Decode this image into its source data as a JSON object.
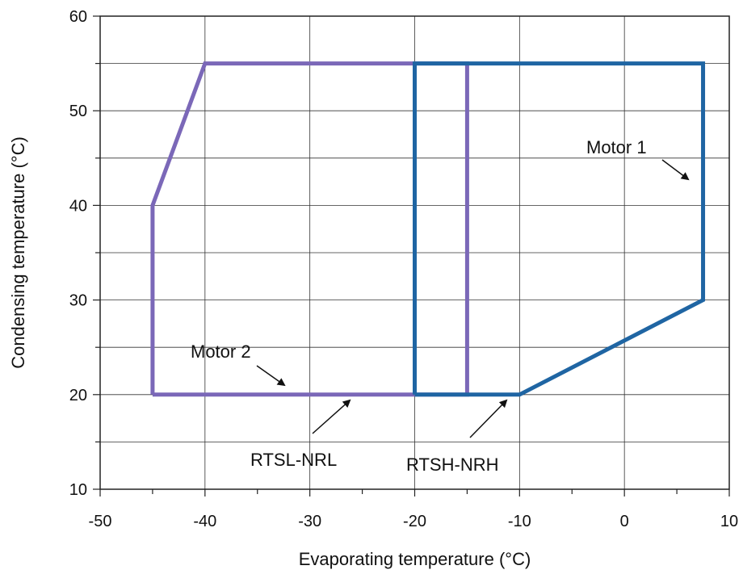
{
  "chart_data": {
    "type": "line",
    "title": "",
    "xlabel": "Evaporating temperature (°C)",
    "ylabel": "Condensing temperature (°C)",
    "xlim": [
      -50,
      10
    ],
    "ylim": [
      10,
      60
    ],
    "x_ticks": [
      -50,
      -40,
      -30,
      -20,
      -10,
      0,
      10
    ],
    "y_ticks": [
      10,
      20,
      30,
      40,
      50,
      60
    ],
    "x_tick_labels": [
      "-50",
      "-40",
      "-30",
      "-20",
      "-10",
      "0",
      "10"
    ],
    "y_tick_labels": [
      "10",
      "20",
      "30",
      "40",
      "50",
      "60"
    ],
    "grid": true,
    "series": [
      {
        "color": "#7b68b8",
        "points": [
          [
            -45,
            20
          ],
          [
            -45,
            40
          ],
          [
            -40,
            55
          ],
          [
            -15,
            55
          ],
          [
            -15,
            20
          ],
          [
            -45,
            20
          ]
        ]
      },
      {
        "color": "#1f65a3",
        "points": [
          [
            -20,
            20
          ],
          [
            -20,
            55
          ],
          [
            7.5,
            55
          ],
          [
            7.5,
            30
          ],
          [
            -10,
            20
          ],
          [
            -20,
            20
          ]
        ]
      }
    ],
    "annotations": [
      {
        "text": "Motor 1",
        "at": [
          5,
          42.5
        ]
      },
      {
        "text": "Motor 2",
        "at": [
          -32,
          21
        ]
      },
      {
        "text": "RTSL-NRL",
        "at": [
          -26,
          19.5
        ]
      },
      {
        "text": "RTSH-NRH",
        "at": [
          -11,
          19.5
        ]
      }
    ]
  }
}
